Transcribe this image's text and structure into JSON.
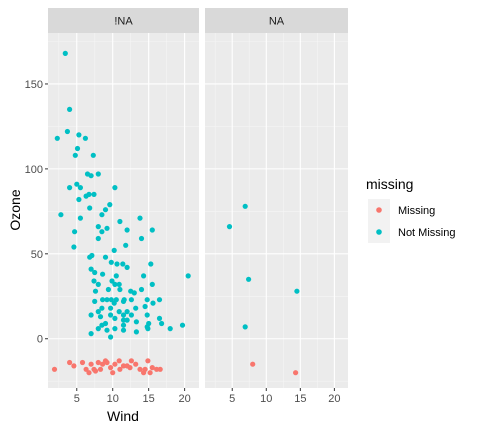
{
  "chart_data": {
    "type": "scatter",
    "xlabel": "Wind",
    "ylabel": "Ozone",
    "xlim": [
      1,
      22
    ],
    "ylim": [
      -29,
      180
    ],
    "x_ticks": [
      5,
      10,
      15,
      20
    ],
    "y_ticks": [
      0,
      50,
      100,
      150
    ],
    "grid": true,
    "legend": {
      "title": "missing",
      "position": "right",
      "entries": [
        {
          "label": "Missing",
          "color": "#F8766D"
        },
        {
          "label": "Not Missing",
          "color": "#00BFC4"
        }
      ]
    },
    "panels": [
      {
        "strip": "!NA",
        "series": [
          {
            "name": "Not Missing",
            "color": "#00BFC4",
            "points": [
              [
                3.4,
                168
              ],
              [
                2.3,
                118
              ],
              [
                4.0,
                135
              ],
              [
                3.7,
                122
              ],
              [
                5.3,
                120
              ],
              [
                6.2,
                118
              ],
              [
                5.1,
                112
              ],
              [
                4.8,
                108
              ],
              [
                7.3,
                108
              ],
              [
                8.0,
                97
              ],
              [
                6.5,
                97
              ],
              [
                7.0,
                96
              ],
              [
                5.0,
                91
              ],
              [
                5.5,
                89
              ],
              [
                4.0,
                89
              ],
              [
                6.7,
                85
              ],
              [
                6.3,
                84
              ],
              [
                7.4,
                85
              ],
              [
                10.3,
                89
              ],
              [
                5.3,
                82
              ],
              [
                6.8,
                77
              ],
              [
                9.6,
                79
              ],
              [
                9.0,
                76
              ],
              [
                8.5,
                73
              ],
              [
                2.8,
                73
              ],
              [
                5.5,
                71
              ],
              [
                8.0,
                66
              ],
              [
                8.5,
                63
              ],
              [
                4.7,
                63
              ],
              [
                11.0,
                69
              ],
              [
                9.2,
                65
              ],
              [
                12.0,
                64
              ],
              [
                13.8,
                71
              ],
              [
                15.5,
                64
              ],
              [
                14.0,
                59
              ],
              [
                8.0,
                59
              ],
              [
                11.8,
                55
              ],
              [
                4.6,
                54
              ],
              [
                10.2,
                52
              ],
              [
                7.1,
                49
              ],
              [
                9.0,
                48
              ],
              [
                6.8,
                48
              ],
              [
                9.8,
                45
              ],
              [
                10.6,
                44
              ],
              [
                11.4,
                44
              ],
              [
                15.3,
                44
              ],
              [
                7.0,
                41
              ],
              [
                12.0,
                42
              ],
              [
                7.5,
                39
              ],
              [
                8.6,
                38
              ],
              [
                10.5,
                37
              ],
              [
                14.3,
                37
              ],
              [
                7.4,
                34
              ],
              [
                9.9,
                34
              ],
              [
                20.5,
                37
              ],
              [
                8.0,
                32
              ],
              [
                10.3,
                32
              ],
              [
                10.9,
                32
              ],
              [
                15.5,
                32
              ],
              [
                9.4,
                29
              ],
              [
                11.0,
                29
              ],
              [
                7.6,
                28
              ],
              [
                12.5,
                28
              ],
              [
                14.0,
                29
              ],
              [
                13.0,
                27
              ],
              [
                8.6,
                23
              ],
              [
                9.2,
                23
              ],
              [
                9.8,
                23
              ],
              [
                10.5,
                23
              ],
              [
                11.6,
                23
              ],
              [
                12.6,
                23
              ],
              [
                14.8,
                23
              ],
              [
                16.5,
                23
              ],
              [
                7.5,
                22
              ],
              [
                11.5,
                22
              ],
              [
                10.2,
                21
              ],
              [
                8.5,
                18
              ],
              [
                9.7,
                18
              ],
              [
                13.2,
                18
              ],
              [
                14.5,
                19
              ],
              [
                15.6,
                21
              ],
              [
                8.0,
                16
              ],
              [
                10.9,
                16
              ],
              [
                12.0,
                16
              ],
              [
                7.0,
                14
              ],
              [
                9.7,
                14
              ],
              [
                11.5,
                14
              ],
              [
                12.6,
                14
              ],
              [
                14.8,
                14
              ],
              [
                8.3,
                13
              ],
              [
                16.5,
                12
              ],
              [
                10.3,
                12
              ],
              [
                11.5,
                11
              ],
              [
                12.0,
                11
              ],
              [
                9.0,
                9
              ],
              [
                13.3,
                10
              ],
              [
                15.0,
                9
              ],
              [
                8.5,
                8
              ],
              [
                11.5,
                8
              ],
              [
                14.8,
                7
              ],
              [
                19.7,
                8
              ],
              [
                10.3,
                6
              ],
              [
                8.0,
                6
              ],
              [
                9.2,
                5
              ],
              [
                11.5,
                5
              ],
              [
                13.3,
                4
              ],
              [
                9.7,
                1
              ],
              [
                16.8,
                9
              ],
              [
                18.0,
                6
              ],
              [
                7.0,
                3
              ],
              [
                14.9,
                6
              ]
            ]
          },
          {
            "name": "Missing",
            "color": "#F8766D",
            "points": [
              [
                1.9,
                -18
              ],
              [
                4.0,
                -14
              ],
              [
                4.6,
                -16
              ],
              [
                5.8,
                -14
              ],
              [
                6.3,
                -18
              ],
              [
                6.7,
                -20
              ],
              [
                7.4,
                -18
              ],
              [
                8.0,
                -14
              ],
              [
                8.6,
                -15
              ],
              [
                9.2,
                -14
              ],
              [
                9.7,
                -17
              ],
              [
                10.3,
                -15
              ],
              [
                10.9,
                -13
              ],
              [
                11.5,
                -16
              ],
              [
                12.0,
                -16
              ],
              [
                12.6,
                -13
              ],
              [
                13.2,
                -15
              ],
              [
                13.8,
                -18
              ],
              [
                14.3,
                -20
              ],
              [
                14.9,
                -13
              ],
              [
                15.5,
                -17
              ],
              [
                16.1,
                -18
              ],
              [
                16.6,
                -18
              ],
              [
                7.0,
                -15
              ],
              [
                7.6,
                -19
              ],
              [
                9.0,
                -13
              ],
              [
                10.0,
                -20
              ],
              [
                11.0,
                -18
              ],
              [
                14.5,
                -18
              ],
              [
                15.2,
                -20
              ],
              [
                8.3,
                -18
              ],
              [
                12.4,
                -17
              ]
            ]
          }
        ]
      },
      {
        "strip": "NA",
        "series": [
          {
            "name": "Not Missing",
            "color": "#00BFC4",
            "points": [
              [
                6.9,
                78
              ],
              [
                4.6,
                66
              ],
              [
                7.4,
                35
              ],
              [
                14.5,
                28
              ],
              [
                6.9,
                7
              ]
            ]
          },
          {
            "name": "Missing",
            "color": "#F8766D",
            "points": [
              [
                8.0,
                -15
              ],
              [
                14.3,
                -20
              ]
            ]
          }
        ]
      }
    ]
  }
}
